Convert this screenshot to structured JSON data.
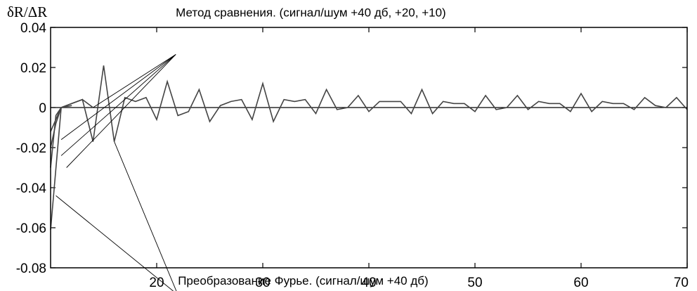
{
  "chart_data": {
    "type": "line",
    "title": "",
    "xlabel": "",
    "ylabel": "δR/ΔR",
    "xlim": [
      10,
      70
    ],
    "ylim": [
      -0.08,
      0.04
    ],
    "xticks": [
      20,
      30,
      40,
      50,
      60,
      70
    ],
    "xtick_labels": [
      "20",
      "30",
      "40",
      "50",
      "60",
      "70"
    ],
    "yticks": [
      0.04,
      0.02,
      0,
      -0.02,
      -0.04,
      -0.06,
      -0.08
    ],
    "ytick_labels": [
      "0.04",
      "0.02",
      "0",
      "-0.02",
      "-0.04",
      "-0.06",
      "-0.08"
    ],
    "grid": false,
    "zero_line": true,
    "line_color": "#444444",
    "series": [
      {
        "x": [
          10,
          11,
          12,
          13,
          14,
          15,
          16,
          17,
          18,
          19,
          20,
          21,
          22,
          23,
          24,
          25,
          26,
          27,
          28,
          29,
          30,
          31,
          32,
          33,
          34,
          35,
          36,
          37,
          38,
          39,
          40,
          41,
          42,
          43,
          44,
          45,
          46,
          47,
          48,
          49,
          50,
          51,
          52,
          53,
          54,
          55,
          56,
          57,
          58,
          59,
          60,
          61,
          62,
          63,
          64,
          65,
          66,
          67,
          68,
          69,
          70
        ],
        "y": [
          -0.061,
          0.0,
          0.002,
          0.004,
          -0.017,
          0.021,
          -0.017,
          0.005,
          0.003,
          0.005,
          -0.006,
          0.013,
          -0.004,
          -0.002,
          0.009,
          -0.007,
          0.001,
          0.003,
          0.004,
          -0.006,
          0.012,
          -0.007,
          0.004,
          0.003,
          0.004,
          -0.003,
          0.009,
          -0.001,
          0.0,
          0.006,
          -0.002,
          0.003,
          0.003,
          0.003,
          -0.003,
          0.009,
          -0.003,
          0.003,
          0.002,
          0.002,
          -0.002,
          0.006,
          -0.001,
          0.0,
          0.006,
          -0.001,
          0.003,
          0.002,
          0.002,
          -0.002,
          0.007,
          -0.002,
          0.003,
          0.002,
          0.002,
          -0.001,
          0.005,
          0.001,
          0.0,
          0.005,
          -0.001
        ]
      },
      {
        "x": [
          10,
          10.5,
          11,
          12,
          13,
          14
        ],
        "y": [
          -0.012,
          -0.006,
          0.0,
          0.002,
          0.004,
          0.0
        ]
      },
      {
        "x": [
          10,
          10.5,
          11,
          12
        ],
        "y": [
          -0.02,
          -0.008,
          0.0,
          0.001
        ]
      },
      {
        "x": [
          10,
          10.5,
          11,
          12
        ],
        "y": [
          -0.03,
          -0.004,
          0.0,
          0.0
        ]
      }
    ],
    "annotations": [
      {
        "text": "Метод сравнения. (сигнал/шум +40 дб, +20, +10)",
        "text_at": [
          21.8,
          0.0455
        ],
        "leaders": [
          [
            11.0,
            -0.016
          ],
          [
            11.0,
            -0.024
          ],
          [
            11.5,
            -0.03
          ],
          [
            14.0,
            0.0
          ]
        ],
        "leader_origin": [
          21.8,
          0.0265
        ]
      },
      {
        "text": "Преобразование Фурье. (сигнал/шум +40 дб)",
        "text_at": [
          22.0,
          -0.0885
        ],
        "leaders": [
          [
            10.5,
            -0.044
          ],
          [
            16.0,
            -0.017
          ]
        ],
        "leader_origin": [
          22.0,
          -0.0935
        ]
      }
    ]
  }
}
